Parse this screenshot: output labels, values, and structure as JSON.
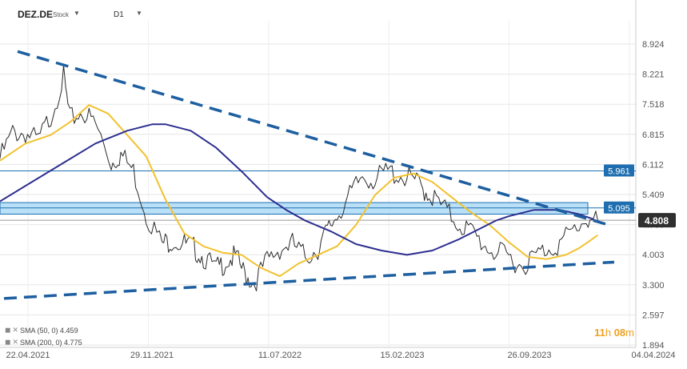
{
  "header": {
    "symbol": "DEZ.DE",
    "type": "Stock",
    "timeframe": "D1"
  },
  "countdown": {
    "h_value": "11",
    "h_unit": "h",
    "m_value": "08",
    "m_unit": "m"
  },
  "legend": [
    {
      "label": "SMA (50, 0) 4.459"
    },
    {
      "label": "SMA (200, 0) 4.775"
    }
  ],
  "colors": {
    "price": "#2b2b2b",
    "sma50": "#f2c230",
    "sma200": "#2d2f8f",
    "trendline": "#1d5fa0",
    "zone_fill": "#a9d8f5",
    "level_line": "#1f6fb0",
    "last_price_bg": "#2f2f2f"
  },
  "chart_data": {
    "type": "line",
    "y_axis": {
      "ticks": [
        "8.924",
        "8.221",
        "7.518",
        "6.815",
        "6.112",
        "5.409",
        "4.706",
        "4.003",
        "3.300",
        "2.597",
        "1.894"
      ],
      "ylim": [
        1.894,
        8.924
      ]
    },
    "x_axis": {
      "ticks": [
        "22.04.2021",
        "29.11.2021",
        "11.07.2022",
        "15.02.2023",
        "26.09.2023",
        "04.04.2024"
      ]
    },
    "levels": [
      {
        "label": "5.961",
        "value": 5.961
      },
      {
        "label": "5.095",
        "value": 5.095
      }
    ],
    "zone": {
      "low": 4.95,
      "high": 5.22
    },
    "last_price": {
      "label": "4.808",
      "value": 4.808
    },
    "trendlines": [
      {
        "name": "upper",
        "points": [
          [
            0.0,
            8.75
          ],
          [
            1.0,
            4.72
          ]
        ]
      },
      {
        "name": "lower",
        "points": [
          [
            0.0,
            2.98
          ],
          [
            1.0,
            3.83
          ]
        ]
      }
    ],
    "series": [
      {
        "name": "price",
        "x": [
          0.0,
          0.02,
          0.04,
          0.06,
          0.08,
          0.1,
          0.11,
          0.13,
          0.15,
          0.175,
          0.19,
          0.21,
          0.23,
          0.255,
          0.27,
          0.29,
          0.305,
          0.32,
          0.34,
          0.355,
          0.37,
          0.385,
          0.4,
          0.42,
          0.44,
          0.46,
          0.48,
          0.5,
          0.515,
          0.53,
          0.55,
          0.57,
          0.59,
          0.61,
          0.63,
          0.65,
          0.665,
          0.68,
          0.7,
          0.72,
          0.74,
          0.76,
          0.78,
          0.8,
          0.82,
          0.84,
          0.86,
          0.88,
          0.9,
          0.922,
          0.94
        ],
        "y": [
          6.3,
          6.9,
          6.9,
          6.7,
          7.3,
          8.2,
          7.2,
          7.4,
          7.1,
          6.2,
          6.4,
          6.0,
          5.0,
          4.3,
          4.4,
          4.3,
          4.2,
          4.0,
          3.7,
          3.9,
          4.0,
          3.6,
          3.4,
          3.9,
          4.2,
          4.3,
          4.0,
          4.2,
          4.6,
          5.0,
          5.4,
          5.9,
          5.8,
          6.0,
          5.9,
          5.8,
          5.6,
          5.4,
          5.1,
          4.8,
          4.6,
          4.3,
          4.1,
          4.0,
          3.8,
          4.0,
          4.2,
          4.3,
          4.6,
          4.9,
          4.81
        ]
      },
      {
        "name": "SMA (50, 0)",
        "x": [
          0.0,
          0.04,
          0.08,
          0.11,
          0.14,
          0.17,
          0.2,
          0.23,
          0.26,
          0.29,
          0.32,
          0.35,
          0.38,
          0.41,
          0.44,
          0.47,
          0.5,
          0.53,
          0.56,
          0.59,
          0.62,
          0.65,
          0.68,
          0.71,
          0.74,
          0.77,
          0.8,
          0.83,
          0.86,
          0.89,
          0.91,
          0.925,
          0.94
        ],
        "y": [
          6.2,
          6.6,
          6.8,
          7.1,
          7.5,
          7.3,
          6.8,
          6.3,
          5.3,
          4.5,
          4.2,
          4.05,
          4.0,
          3.7,
          3.5,
          3.8,
          4.0,
          4.2,
          4.7,
          5.4,
          5.8,
          5.9,
          5.7,
          5.35,
          5.0,
          4.7,
          4.3,
          3.95,
          3.9,
          4.0,
          4.15,
          4.3,
          4.46
        ]
      },
      {
        "name": "SMA (200, 0)",
        "x": [
          0.0,
          0.05,
          0.1,
          0.15,
          0.2,
          0.24,
          0.26,
          0.3,
          0.34,
          0.38,
          0.42,
          0.45,
          0.48,
          0.52,
          0.56,
          0.6,
          0.64,
          0.68,
          0.72,
          0.76,
          0.78,
          0.8,
          0.84,
          0.88,
          0.91,
          0.93,
          0.94
        ],
        "y": [
          5.25,
          5.7,
          6.15,
          6.6,
          6.9,
          7.05,
          7.05,
          6.9,
          6.5,
          5.95,
          5.35,
          5.05,
          4.8,
          4.55,
          4.25,
          4.1,
          4.0,
          4.1,
          4.35,
          4.65,
          4.8,
          4.9,
          5.05,
          5.05,
          4.95,
          4.85,
          4.78
        ]
      }
    ]
  }
}
